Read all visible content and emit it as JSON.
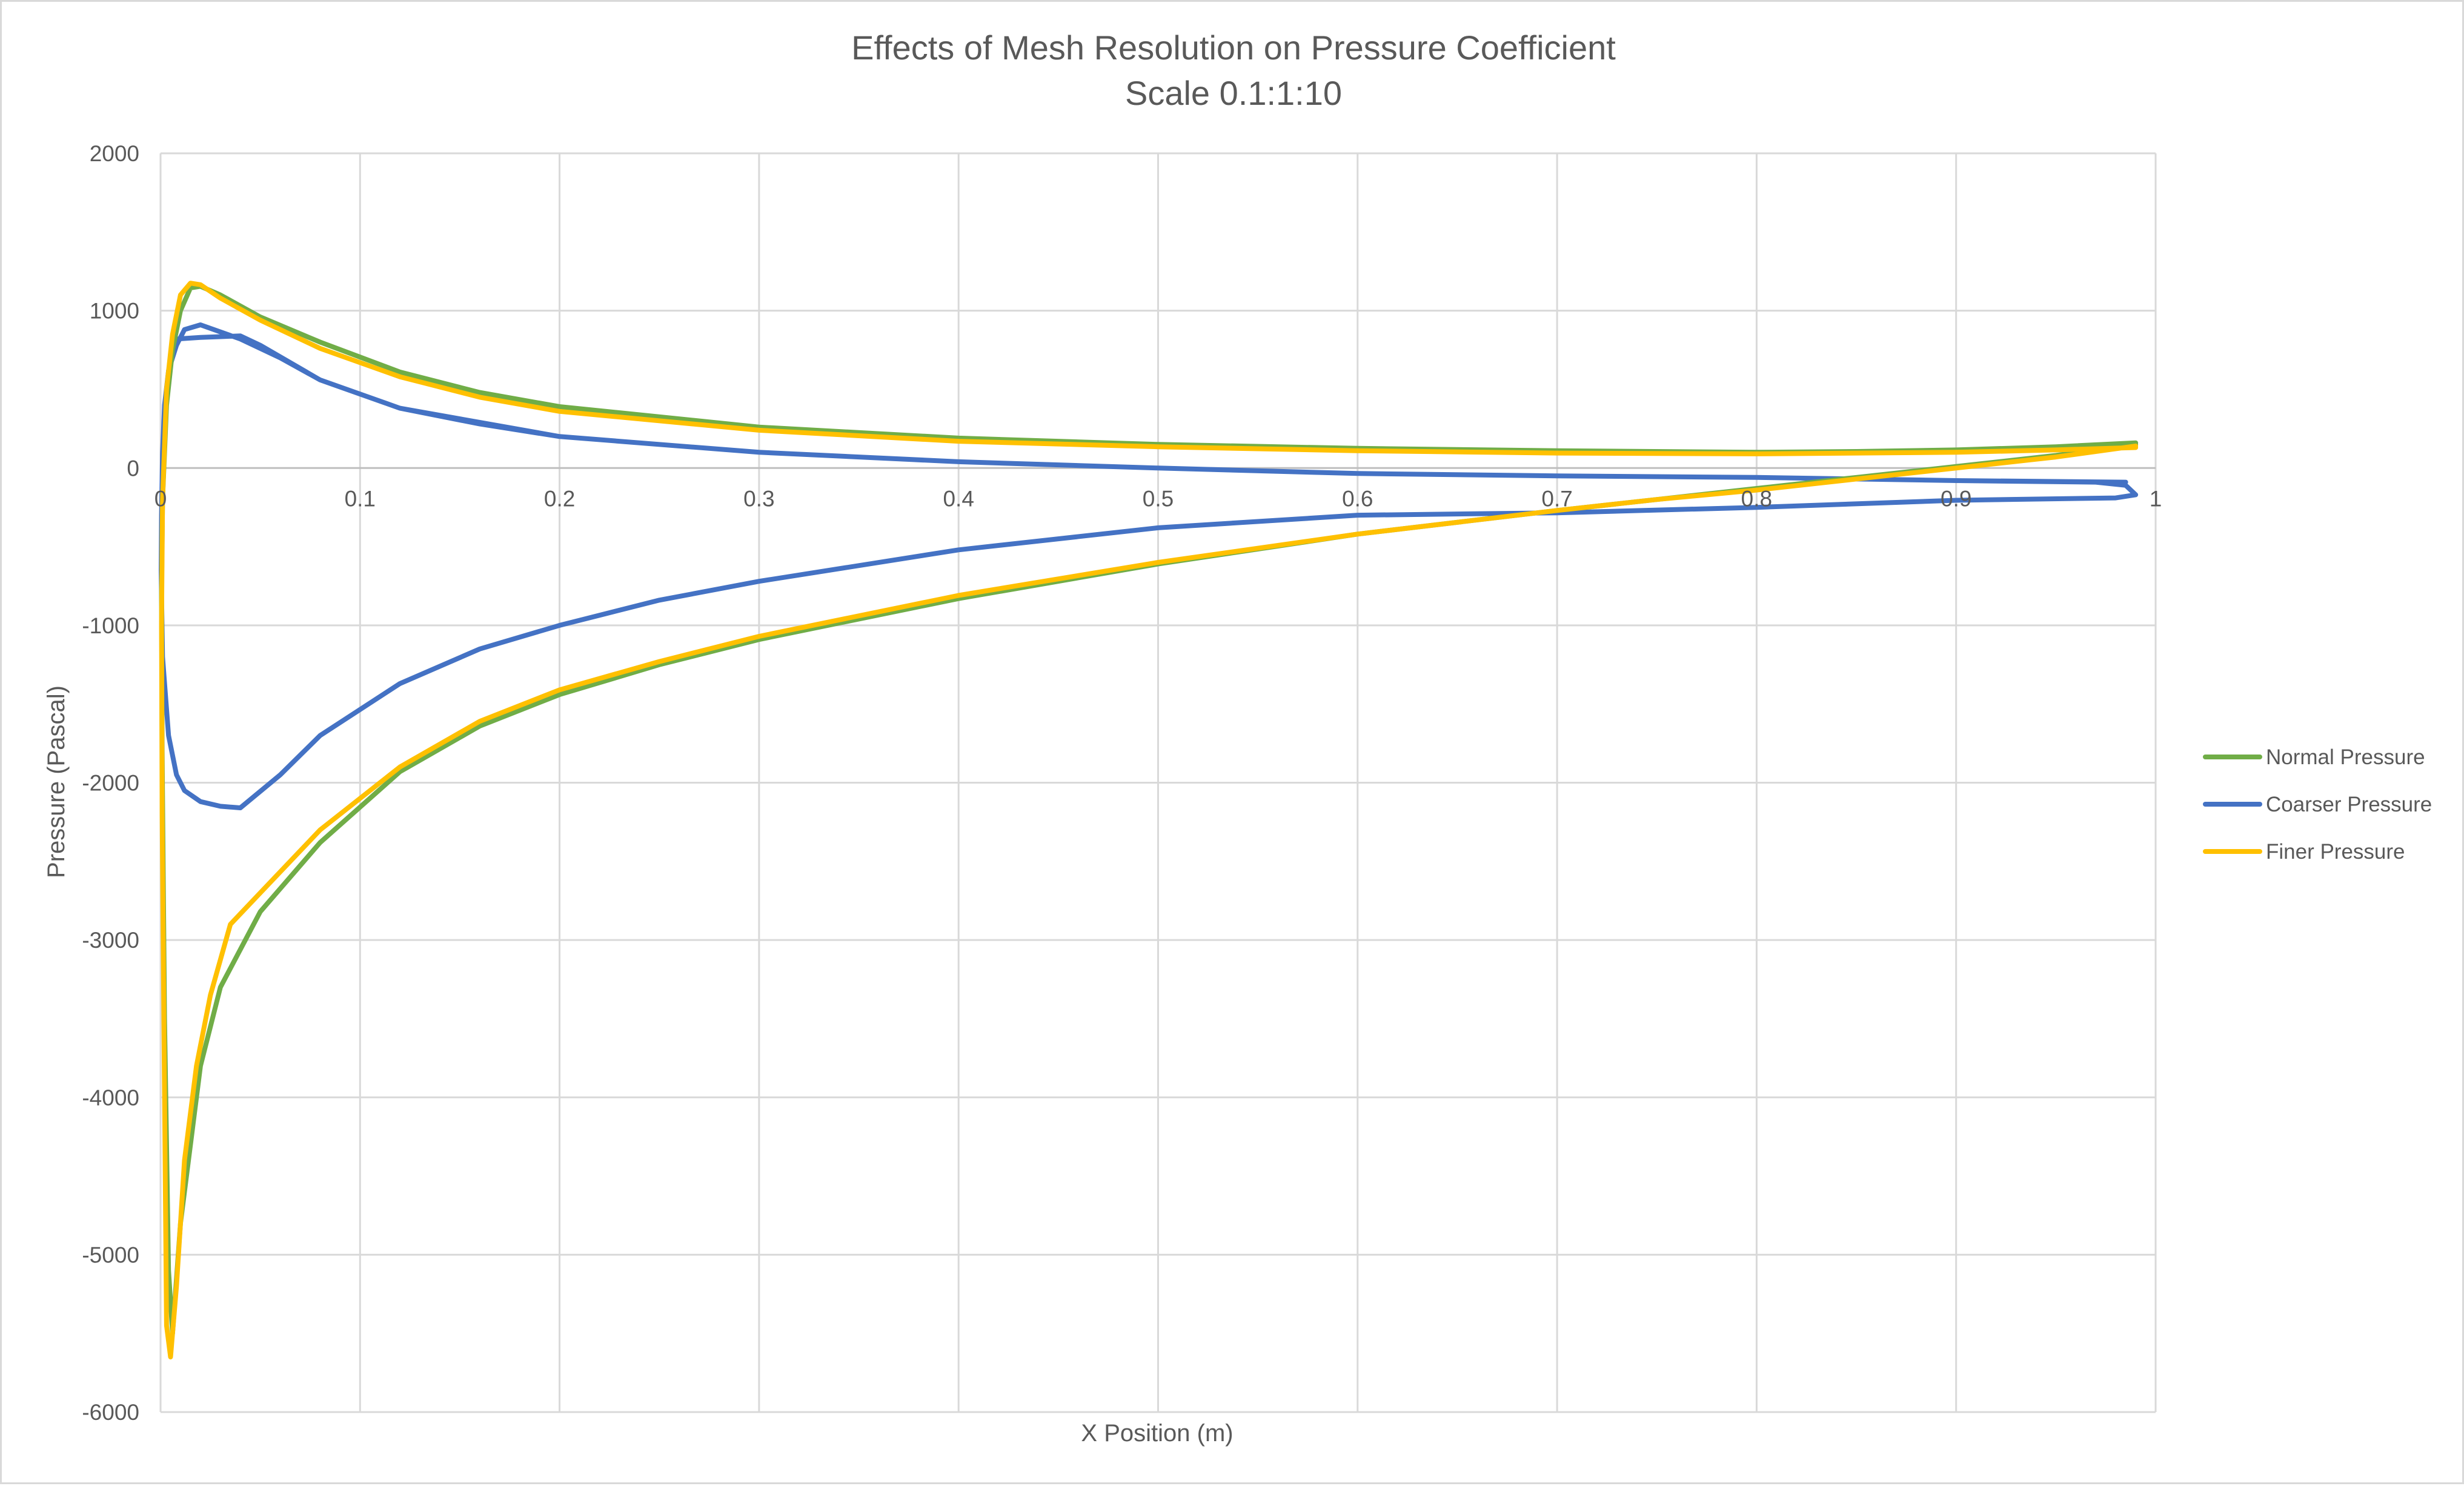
{
  "chart_data": {
    "type": "scatter",
    "title": "Effects of Mesh Resolution on Pressure Coefficient",
    "subtitle": "Scale 0.1:1:10",
    "xlabel": "X Position (m)",
    "ylabel": "Pressure (Pascal)",
    "xlim": [
      0,
      1
    ],
    "ylim": [
      -6000,
      2000
    ],
    "x_ticks": [
      0,
      0.1,
      0.2,
      0.3,
      0.4,
      0.5,
      0.6,
      0.7,
      0.8,
      0.9,
      1
    ],
    "x_tick_labels": [
      "0",
      "0.1",
      "0.2",
      "0.3",
      "0.4",
      "0.5",
      "0.6",
      "0.7",
      "0.8",
      "0.9",
      "1"
    ],
    "y_ticks": [
      2000,
      1000,
      0,
      -1000,
      -2000,
      -3000,
      -4000,
      -5000,
      -6000
    ],
    "y_tick_labels": [
      "2000",
      "1000",
      "0",
      "-1000",
      "-2000",
      "-3000",
      "-4000",
      "-5000",
      "-6000"
    ],
    "grid": true,
    "legend_position": "right",
    "series": [
      {
        "name": "Normal Pressure",
        "color": "#70ad47",
        "x": [
          0.99,
          0.95,
          0.9,
          0.85,
          0.8,
          0.7,
          0.6,
          0.5,
          0.4,
          0.3,
          0.2,
          0.16,
          0.12,
          0.08,
          0.05,
          0.03,
          0.02,
          0.015,
          0.01,
          0.006,
          0.003,
          0.001,
          0.0005,
          0.0008,
          0.002,
          0.004,
          0.006,
          0.01,
          0.015,
          0.02,
          0.03,
          0.05,
          0.08,
          0.12,
          0.16,
          0.2,
          0.25,
          0.3,
          0.4,
          0.5,
          0.6,
          0.7,
          0.75,
          0.8,
          0.85,
          0.9,
          0.95,
          0.99
        ],
        "y": [
          160,
          135,
          115,
          105,
          100,
          110,
          125,
          150,
          190,
          260,
          390,
          480,
          610,
          800,
          960,
          1100,
          1155,
          1145,
          1000,
          750,
          400,
          -200,
          -800,
          -1800,
          -3500,
          -5100,
          -5500,
          -4800,
          -4300,
          -3800,
          -3300,
          -2820,
          -2380,
          -1930,
          -1640,
          -1440,
          -1250,
          -1090,
          -830,
          -610,
          -420,
          -270,
          -200,
          -130,
          -60,
          10,
          80,
          150
        ]
      },
      {
        "name": "Coarser Pressure",
        "color": "#4472c4",
        "x": [
          0.985,
          0.9,
          0.8,
          0.7,
          0.6,
          0.5,
          0.4,
          0.3,
          0.2,
          0.16,
          0.12,
          0.08,
          0.06,
          0.04,
          0.02,
          0.012,
          0.008,
          0.004,
          0.002,
          0.001,
          0.0005,
          0.0003,
          0.001,
          0.004,
          0.008,
          0.012,
          0.02,
          0.03,
          0.04,
          0.06,
          0.08,
          0.12,
          0.16,
          0.2,
          0.25,
          0.3,
          0.4,
          0.5,
          0.6,
          0.7,
          0.8,
          0.9,
          0.98,
          0.99,
          0.985,
          0.97,
          0.9,
          0.8,
          0.7,
          0.6,
          0.5,
          0.4,
          0.3,
          0.2,
          0.12,
          0.08,
          0.05,
          0.04,
          0.03,
          0.02,
          0.008
        ],
        "y": [
          -90,
          -80,
          -60,
          -50,
          -35,
          0,
          40,
          100,
          200,
          280,
          380,
          560,
          700,
          820,
          910,
          880,
          780,
          620,
          400,
          100,
          -300,
          -650,
          -1200,
          -1700,
          -1950,
          -2050,
          -2120,
          -2150,
          -2160,
          -1950,
          -1700,
          -1370,
          -1150,
          -1000,
          -840,
          -720,
          -520,
          -380,
          -300,
          -285,
          -250,
          -205,
          -190,
          -170,
          -110,
          -90,
          -80,
          -60,
          -50,
          -35,
          0,
          40,
          100,
          200,
          380,
          560,
          780,
          840,
          835,
          830,
          820
        ]
      },
      {
        "name": "Finer Pressure",
        "color": "#ffc000",
        "x": [
          0.99,
          0.95,
          0.9,
          0.85,
          0.8,
          0.7,
          0.6,
          0.5,
          0.4,
          0.3,
          0.2,
          0.16,
          0.12,
          0.08,
          0.05,
          0.03,
          0.02,
          0.015,
          0.01,
          0.006,
          0.003,
          0.001,
          0.0005,
          0.0008,
          0.002,
          0.003,
          0.005,
          0.008,
          0.012,
          0.018,
          0.025,
          0.035,
          0.05,
          0.08,
          0.12,
          0.16,
          0.2,
          0.25,
          0.3,
          0.4,
          0.5,
          0.6,
          0.7,
          0.75,
          0.8,
          0.85,
          0.9,
          0.95,
          0.99
        ],
        "y": [
          130,
          115,
          100,
          95,
          90,
          95,
          110,
          135,
          170,
          240,
          360,
          450,
          580,
          760,
          940,
          1080,
          1165,
          1175,
          1100,
          850,
          500,
          -200,
          -1000,
          -2200,
          -4000,
          -5450,
          -5650,
          -5200,
          -4400,
          -3800,
          -3350,
          -2900,
          -2700,
          -2300,
          -1900,
          -1610,
          -1410,
          -1230,
          -1070,
          -810,
          -600,
          -420,
          -270,
          -200,
          -140,
          -70,
          0,
          70,
          140
        ]
      }
    ]
  }
}
